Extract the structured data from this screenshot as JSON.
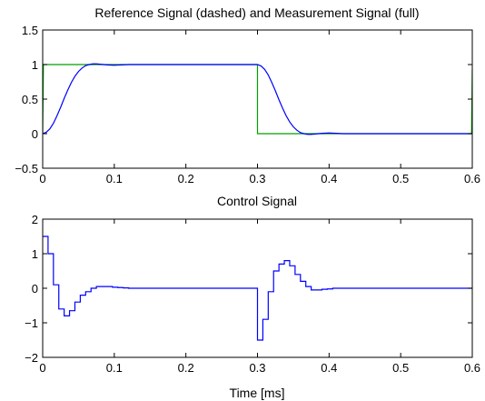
{
  "chart_data": [
    {
      "type": "line",
      "title": "Reference Signal (dashed) and Measurement Signal (full)",
      "xlabel": "",
      "ylabel": "",
      "xlim": [
        0,
        0.6
      ],
      "ylim": [
        -0.5,
        1.5
      ],
      "xticks": [
        "0",
        "0.1",
        "0.2",
        "0.3",
        "0.4",
        "0.5",
        "0.6"
      ],
      "yticks": [
        "−0.5",
        "0",
        "0.5",
        "1",
        "1.5"
      ],
      "grid": false,
      "series": [
        {
          "color": "#00a000",
          "x": [
            0,
            0.001,
            0.3,
            0.3,
            0.599,
            0.6
          ],
          "y": [
            0,
            1,
            1,
            0,
            0,
            0.93
          ]
        },
        {
          "color": "#0000ff",
          "x": [
            0,
            0.005,
            0.01,
            0.015,
            0.02,
            0.025,
            0.03,
            0.035,
            0.04,
            0.045,
            0.05,
            0.055,
            0.06,
            0.065,
            0.07,
            0.075,
            0.08,
            0.085,
            0.09,
            0.1,
            0.11,
            0.12,
            0.14,
            0.17,
            0.2,
            0.25,
            0.3,
            0.305,
            0.31,
            0.315,
            0.32,
            0.325,
            0.33,
            0.335,
            0.34,
            0.345,
            0.35,
            0.355,
            0.36,
            0.365,
            0.37,
            0.375,
            0.38,
            0.385,
            0.39,
            0.4,
            0.41,
            0.42,
            0.44,
            0.47,
            0.5,
            0.55,
            0.6
          ],
          "y": [
            0,
            0.02,
            0.07,
            0.15,
            0.26,
            0.38,
            0.51,
            0.63,
            0.74,
            0.83,
            0.9,
            0.95,
            0.985,
            1.0,
            1.01,
            1.01,
            1.005,
            1.0,
            0.995,
            0.99,
            0.995,
            1.0,
            1.0,
            1.0,
            1.0,
            1.0,
            1.0,
            0.98,
            0.93,
            0.85,
            0.74,
            0.62,
            0.49,
            0.37,
            0.26,
            0.17,
            0.1,
            0.05,
            0.015,
            0.0,
            -0.01,
            -0.01,
            -0.005,
            0.0,
            0.005,
            0.01,
            0.005,
            0.0,
            0.0,
            0.0,
            0.0,
            0.0,
            0.0
          ]
        }
      ]
    },
    {
      "type": "line",
      "title": "Control Signal",
      "xlabel": "Time [ms]",
      "ylabel": "",
      "xlim": [
        0,
        0.6
      ],
      "ylim": [
        -2,
        2
      ],
      "xticks": [
        "0",
        "0.1",
        "0.2",
        "0.3",
        "0.4",
        "0.5",
        "0.6"
      ],
      "yticks": [
        "−2",
        "−1",
        "0",
        "1",
        "2"
      ],
      "grid": false,
      "step": true,
      "series": [
        {
          "color": "#0000ff",
          "x": [
            0,
            0.0075,
            0.015,
            0.0225,
            0.03,
            0.0375,
            0.045,
            0.0525,
            0.06,
            0.0675,
            0.075,
            0.0825,
            0.09,
            0.0975,
            0.105,
            0.1125,
            0.12,
            0.1275,
            0.135,
            0.2925,
            0.3,
            0.3075,
            0.315,
            0.3225,
            0.33,
            0.3375,
            0.345,
            0.3525,
            0.36,
            0.3675,
            0.375,
            0.3825,
            0.39,
            0.3975,
            0.405,
            0.6
          ],
          "y": [
            1.5,
            1.0,
            0.1,
            -0.6,
            -0.8,
            -0.65,
            -0.4,
            -0.2,
            -0.1,
            0.0,
            0.05,
            0.05,
            0.05,
            0.03,
            0.02,
            0.01,
            0.0,
            0.0,
            0.0,
            0.0,
            -1.5,
            -0.9,
            -0.1,
            0.5,
            0.7,
            0.8,
            0.65,
            0.4,
            0.2,
            0.05,
            -0.05,
            -0.05,
            -0.03,
            -0.02,
            0.0,
            0.0
          ]
        }
      ]
    }
  ]
}
